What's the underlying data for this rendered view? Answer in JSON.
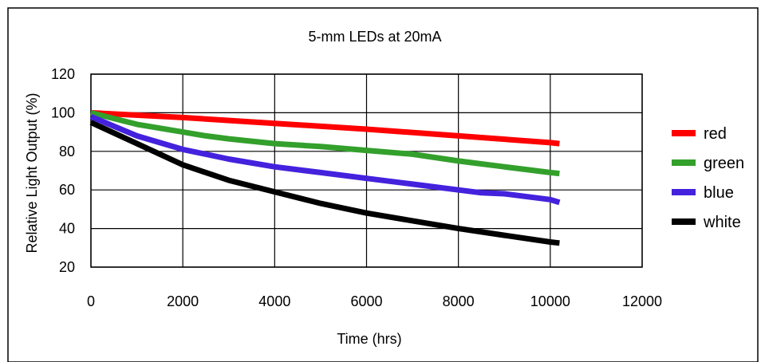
{
  "chart_data": {
    "type": "line",
    "title": "5-mm LEDs at 20mA",
    "xlabel": "Time (hrs)",
    "ylabel": "Relative Light Output (%)",
    "xlim": [
      0,
      12000
    ],
    "ylim": [
      20,
      120
    ],
    "xticks": [
      0,
      2000,
      4000,
      6000,
      8000,
      10000,
      12000
    ],
    "yticks": [
      20,
      40,
      60,
      80,
      100,
      120
    ],
    "grid": true,
    "legend": "right",
    "series": [
      {
        "name": "red",
        "color": "#ff0000",
        "x": [
          0,
          2000,
          4000,
          6000,
          8000,
          10000,
          10200
        ],
        "y": [
          100,
          97.5,
          94.5,
          91.5,
          88,
          84.5,
          84
        ]
      },
      {
        "name": "green",
        "color": "#33a02c",
        "x": [
          0,
          1000,
          2000,
          2500,
          3000,
          4000,
          5000,
          6000,
          7000,
          8000,
          9000,
          10000,
          10200
        ],
        "y": [
          100,
          94,
          90,
          88,
          86.5,
          84,
          82.5,
          80.5,
          78.5,
          75,
          72,
          69,
          68.5
        ]
      },
      {
        "name": "blue",
        "color": "#4422dd",
        "x": [
          0,
          1000,
          2000,
          3000,
          4000,
          5000,
          6000,
          7000,
          8000,
          8500,
          9000,
          10000,
          10200
        ],
        "y": [
          98,
          88,
          81,
          76,
          72,
          69,
          66,
          63,
          60,
          58.5,
          58,
          55,
          53.5
        ]
      },
      {
        "name": "white",
        "color": "#000000",
        "x": [
          0,
          1000,
          2000,
          3000,
          4000,
          5000,
          6000,
          7000,
          8000,
          9000,
          10000,
          10200
        ],
        "y": [
          95,
          84,
          73,
          65,
          59,
          53,
          48,
          44,
          40,
          36.5,
          33,
          32.5
        ]
      }
    ]
  }
}
